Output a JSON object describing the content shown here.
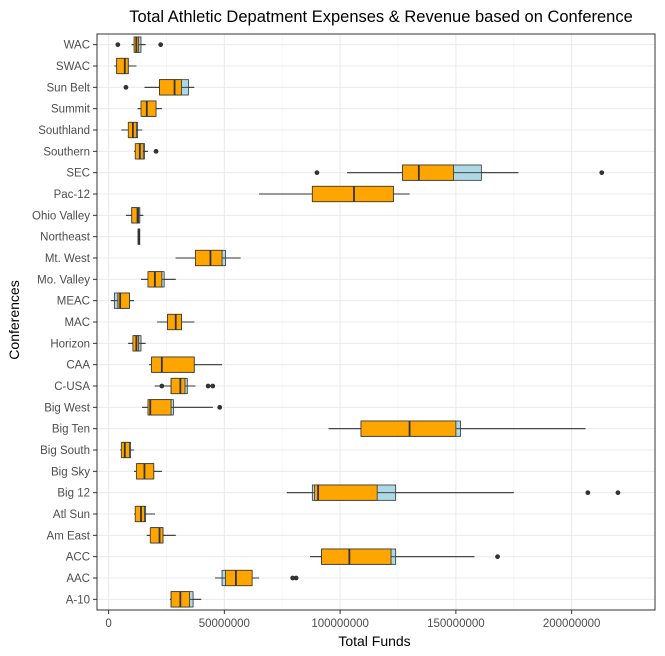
{
  "chart_data": {
    "type": "boxplot",
    "title": "Total Athletic Depatment Expenses & Revenue based on Conference",
    "xlabel": "Total Funds",
    "ylabel": "Conferences",
    "xlim": [
      -5000000,
      236000000
    ],
    "xticks": [
      0,
      50000000,
      100000000,
      150000000,
      200000000
    ],
    "xtick_labels": [
      "0",
      "50000000",
      "100000000",
      "150000000",
      "200000000"
    ],
    "grid": true,
    "colors": {
      "revenue": "#add8e6",
      "expenses": "#ffa500",
      "outline": "#333333"
    },
    "categories": [
      "A-10",
      "AAC",
      "ACC",
      "Am East",
      "Atl Sun",
      "Big 12",
      "Big Sky",
      "Big South",
      "Big Ten",
      "Big West",
      "C-USA",
      "CAA",
      "Horizon",
      "MAC",
      "MEAC",
      "Mo. Valley",
      "Mt. West",
      "Northeast",
      "Ohio Valley",
      "Pac-12",
      "SEC",
      "Southern",
      "Southland",
      "Summit",
      "Sun Belt",
      "SWAC",
      "WAC"
    ],
    "series": [
      {
        "name": "Revenue",
        "boxes": [
          {
            "min": 26500000,
            "q1": 27000000,
            "median": 31000000,
            "q3": 36500000,
            "max": 40000000,
            "outliers": []
          },
          {
            "min": 46000000,
            "q1": 49000000,
            "median": 55000000,
            "q3": 62000000,
            "max": 65000000,
            "outliers": [
              79500000,
              81000000
            ]
          },
          {
            "min": 87000000,
            "q1": 92000000,
            "median": 104000000,
            "q3": 124000000,
            "max": 158000000,
            "outliers": [
              168000000
            ]
          },
          {
            "min": 16500000,
            "q1": 18500000,
            "median": 22000000,
            "q3": 23500000,
            "max": 29000000,
            "outliers": []
          },
          {
            "min": 11000000,
            "q1": 12000000,
            "median": 14000000,
            "q3": 16000000,
            "max": 20000000,
            "outliers": []
          },
          {
            "min": 77000000,
            "q1": 88000000,
            "median": 91000000,
            "q3": 124000000,
            "max": 175000000,
            "outliers": [
              207000000,
              220000000
            ]
          },
          {
            "min": 11000000,
            "q1": 12500000,
            "median": 16000000,
            "q3": 19500000,
            "max": 23000000,
            "outliers": []
          },
          {
            "min": 5000000,
            "q1": 6500000,
            "median": 8000000,
            "q3": 9500000,
            "max": 11000000,
            "outliers": []
          },
          {
            "min": 95000000,
            "q1": 109000000,
            "median": 130000000,
            "q3": 152000000,
            "max": 206000000,
            "outliers": []
          },
          {
            "min": 14500000,
            "q1": 17500000,
            "median": 19000000,
            "q3": 28000000,
            "max": 45000000,
            "outliers": [
              48000000
            ]
          },
          {
            "min": 20000000,
            "q1": 27000000,
            "median": 31500000,
            "q3": 34000000,
            "max": 37500000,
            "outliers": [
              23000000,
              43000000,
              45000000
            ]
          },
          {
            "min": 17500000,
            "q1": 19000000,
            "median": 23000000,
            "q3": 37000000,
            "max": 49000000,
            "outliers": []
          },
          {
            "min": 8500000,
            "q1": 11000000,
            "median": 12000000,
            "q3": 14000000,
            "max": 16000000,
            "outliers": []
          },
          {
            "min": 21000000,
            "q1": 25500000,
            "median": 29500000,
            "q3": 31500000,
            "max": 37000000,
            "outliers": []
          },
          {
            "min": 1000000,
            "q1": 2500000,
            "median": 5000000,
            "q3": 9000000,
            "max": 11000000,
            "outliers": []
          },
          {
            "min": 14000000,
            "q1": 17500000,
            "median": 20000000,
            "q3": 24000000,
            "max": 29000000,
            "outliers": []
          },
          {
            "min": 29000000,
            "q1": 37500000,
            "median": 44000000,
            "q3": 50500000,
            "max": 57000000,
            "outliers": []
          },
          {
            "min": 12500000,
            "q1": 12800000,
            "median": 13000000,
            "q3": 13200000,
            "max": 13500000,
            "outliers": []
          },
          {
            "min": 7500000,
            "q1": 10000000,
            "median": 12500000,
            "q3": 13500000,
            "max": 15000000,
            "outliers": []
          },
          {
            "min": 65000000,
            "q1": 88000000,
            "median": 107000000,
            "q3": 123000000,
            "max": 130000000,
            "outliers": []
          },
          {
            "min": 103000000,
            "q1": 127000000,
            "median": 136000000,
            "q3": 161000000,
            "max": 177000000,
            "outliers": [
              90000000,
              213000000
            ]
          },
          {
            "min": 11000000,
            "q1": 12500000,
            "median": 13500000,
            "q3": 15500000,
            "max": 17000000,
            "outliers": [
              20500000
            ]
          },
          {
            "min": 5500000,
            "q1": 9000000,
            "median": 11000000,
            "q3": 12500000,
            "max": 14500000,
            "outliers": []
          },
          {
            "min": 12500000,
            "q1": 14500000,
            "median": 16500000,
            "q3": 20500000,
            "max": 23000000,
            "outliers": []
          },
          {
            "min": 15500000,
            "q1": 22000000,
            "median": 28500000,
            "q3": 34500000,
            "max": 37000000,
            "outliers": [
              7500000
            ]
          },
          {
            "min": 2500000,
            "q1": 3500000,
            "median": 7000000,
            "q3": 8500000,
            "max": 12000000,
            "outliers": []
          },
          {
            "min": 10000000,
            "q1": 11500000,
            "median": 12000000,
            "q3": 14000000,
            "max": 16000000,
            "outliers": [
              4000000,
              22500000
            ]
          }
        ]
      },
      {
        "name": "Expenses",
        "boxes": [
          {
            "min": 26500000,
            "q1": 27000000,
            "median": 31000000,
            "q3": 35000000,
            "max": 40000000,
            "outliers": []
          },
          {
            "min": 46000000,
            "q1": 50500000,
            "median": 55000000,
            "q3": 62000000,
            "max": 65000000,
            "outliers": [
              79500000,
              81000000
            ]
          },
          {
            "min": 87000000,
            "q1": 92000000,
            "median": 104000000,
            "q3": 122000000,
            "max": 158000000,
            "outliers": [
              168000000
            ]
          },
          {
            "min": 16500000,
            "q1": 18000000,
            "median": 22000000,
            "q3": 23500000,
            "max": 29000000,
            "outliers": []
          },
          {
            "min": 11000000,
            "q1": 11500000,
            "median": 14000000,
            "q3": 15500000,
            "max": 20000000,
            "outliers": []
          },
          {
            "min": 77000000,
            "q1": 89000000,
            "median": 90500000,
            "q3": 116000000,
            "max": 175000000,
            "outliers": [
              207000000,
              220000000
            ]
          },
          {
            "min": 11000000,
            "q1": 12000000,
            "median": 15500000,
            "q3": 19500000,
            "max": 23000000,
            "outliers": []
          },
          {
            "min": 5000000,
            "q1": 5500000,
            "median": 7000000,
            "q3": 9000000,
            "max": 11000000,
            "outliers": []
          },
          {
            "min": 95000000,
            "q1": 109000000,
            "median": 130000000,
            "q3": 150000000,
            "max": 206000000,
            "outliers": []
          },
          {
            "min": 14500000,
            "q1": 17000000,
            "median": 18000000,
            "q3": 27000000,
            "max": 45000000,
            "outliers": [
              48000000
            ]
          },
          {
            "min": 20000000,
            "q1": 27000000,
            "median": 31000000,
            "q3": 33000000,
            "max": 37500000,
            "outliers": [
              23000000,
              43000000,
              45000000
            ]
          },
          {
            "min": 17500000,
            "q1": 18500000,
            "median": 23000000,
            "q3": 37000000,
            "max": 49000000,
            "outliers": []
          },
          {
            "min": 8500000,
            "q1": 10500000,
            "median": 12000000,
            "q3": 13000000,
            "max": 16000000,
            "outliers": []
          },
          {
            "min": 21000000,
            "q1": 25500000,
            "median": 29000000,
            "q3": 31500000,
            "max": 37000000,
            "outliers": []
          },
          {
            "min": 1000000,
            "q1": 4000000,
            "median": 5000000,
            "q3": 9000000,
            "max": 11000000,
            "outliers": []
          },
          {
            "min": 14000000,
            "q1": 17000000,
            "median": 20000000,
            "q3": 23000000,
            "max": 29000000,
            "outliers": []
          },
          {
            "min": 29000000,
            "q1": 37500000,
            "median": 44000000,
            "q3": 49000000,
            "max": 57000000,
            "outliers": []
          },
          {
            "min": 12500000,
            "q1": 12800000,
            "median": 13000000,
            "q3": 13200000,
            "max": 13500000,
            "outliers": []
          },
          {
            "min": 7500000,
            "q1": 10000000,
            "median": 12500000,
            "q3": 13000000,
            "max": 15000000,
            "outliers": []
          },
          {
            "min": 65000000,
            "q1": 88000000,
            "median": 106000000,
            "q3": 123000000,
            "max": 130000000,
            "outliers": []
          },
          {
            "min": 103000000,
            "q1": 127000000,
            "median": 134000000,
            "q3": 149000000,
            "max": 177000000,
            "outliers": [
              90000000,
              213000000
            ]
          },
          {
            "min": 11000000,
            "q1": 11500000,
            "median": 13500000,
            "q3": 15000000,
            "max": 17000000,
            "outliers": [
              20500000
            ]
          },
          {
            "min": 5500000,
            "q1": 8500000,
            "median": 10500000,
            "q3": 12000000,
            "max": 14500000,
            "outliers": []
          },
          {
            "min": 12500000,
            "q1": 14000000,
            "median": 16500000,
            "q3": 20500000,
            "max": 23000000,
            "outliers": []
          },
          {
            "min": 15500000,
            "q1": 22000000,
            "median": 28500000,
            "q3": 31500000,
            "max": 37000000,
            "outliers": [
              7500000
            ]
          },
          {
            "min": 2500000,
            "q1": 3500000,
            "median": 7000000,
            "q3": 8500000,
            "max": 12000000,
            "outliers": []
          },
          {
            "min": 10000000,
            "q1": 11000000,
            "median": 12000000,
            "q3": 13000000,
            "max": 16000000,
            "outliers": [
              4000000,
              22500000
            ]
          }
        ]
      }
    ]
  }
}
